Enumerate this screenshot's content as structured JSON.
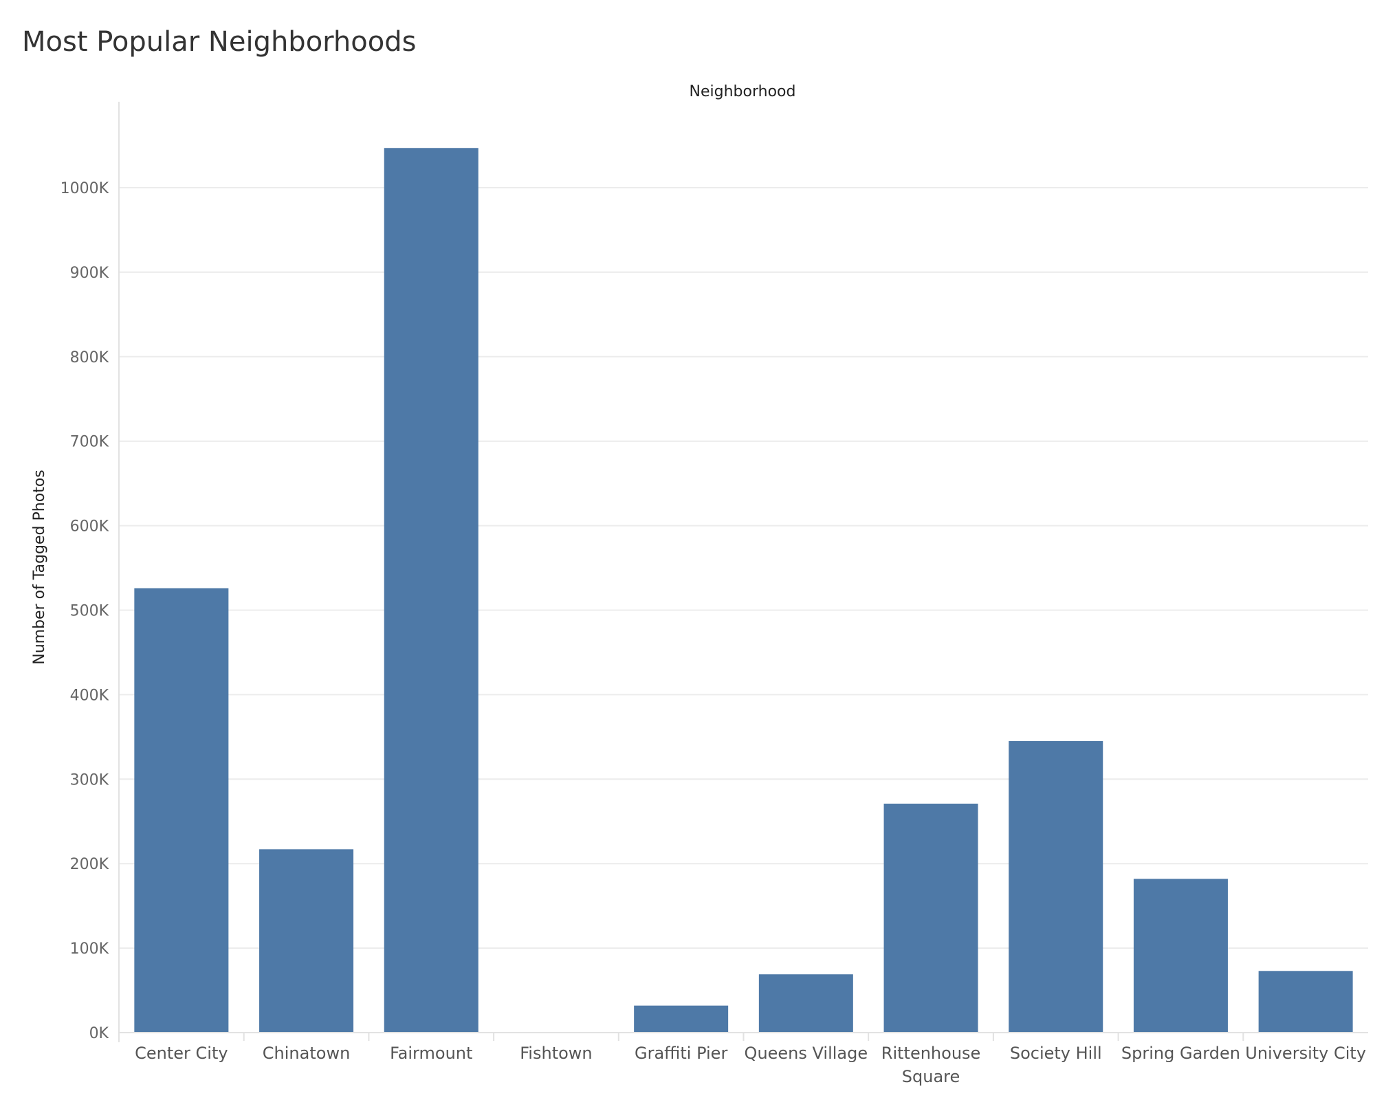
{
  "title": "Most Popular Neighborhoods",
  "chart_data": {
    "type": "bar",
    "title": "Most Popular Neighborhoods",
    "xlabel": "Neighborhood",
    "ylabel": "Number of Tagged Photos",
    "categories": [
      "Center City",
      "Chinatown",
      "Fairmount",
      "Fishtown",
      "Graffiti Pier",
      "Queens Village",
      "Rittenhouse Square",
      "Society Hill",
      "Spring Garden",
      "University City"
    ],
    "category_label_lines": [
      [
        "Center City"
      ],
      [
        "Chinatown"
      ],
      [
        "Fairmount"
      ],
      [
        "Fishtown"
      ],
      [
        "Graffiti Pier"
      ],
      [
        "Queens Village"
      ],
      [
        "Rittenhouse",
        "Square"
      ],
      [
        "Society Hill"
      ],
      [
        "Spring Garden"
      ],
      [
        "University City"
      ]
    ],
    "values": [
      526000,
      217000,
      1047000,
      0,
      32000,
      69000,
      271000,
      345000,
      182000,
      73000
    ],
    "ylim": [
      0,
      1100000
    ],
    "yticks": [
      0,
      100000,
      200000,
      300000,
      400000,
      500000,
      600000,
      700000,
      800000,
      900000,
      1000000
    ],
    "ytick_labels": [
      "0K",
      "100K",
      "200K",
      "300K",
      "400K",
      "500K",
      "600K",
      "700K",
      "800K",
      "900K",
      "1000K"
    ],
    "grid": true,
    "legend": false,
    "bar_color": "#4e79a7"
  }
}
